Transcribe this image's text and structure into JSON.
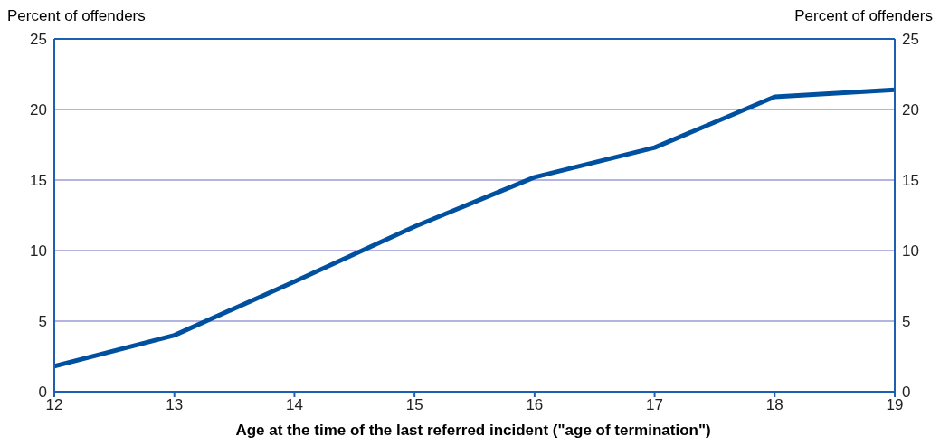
{
  "chart_data": {
    "type": "line",
    "xlabel": "Age at the time of the last referred incident (\"age of termination\")",
    "ylabel": "Percent of offenders",
    "y2label": "Percent of offenders",
    "x": [
      12,
      13,
      14,
      15,
      16,
      17,
      18,
      19
    ],
    "series": [
      {
        "color": "#0050a0",
        "values": [
          1.8,
          4.0,
          7.8,
          11.7,
          15.2,
          17.3,
          20.9,
          21.4
        ]
      }
    ],
    "xlim": [
      12,
      19
    ],
    "xticks": [
      12,
      13,
      14,
      15,
      16,
      17,
      18,
      19
    ],
    "ylim": [
      0,
      25
    ],
    "yticks": [
      0,
      5,
      10,
      15,
      20,
      25
    ],
    "y2lim": [
      0,
      25
    ],
    "y2ticks": [
      0,
      5,
      10,
      15,
      20,
      25
    ],
    "grid": "y",
    "marker": "none",
    "line_style": "solid"
  }
}
